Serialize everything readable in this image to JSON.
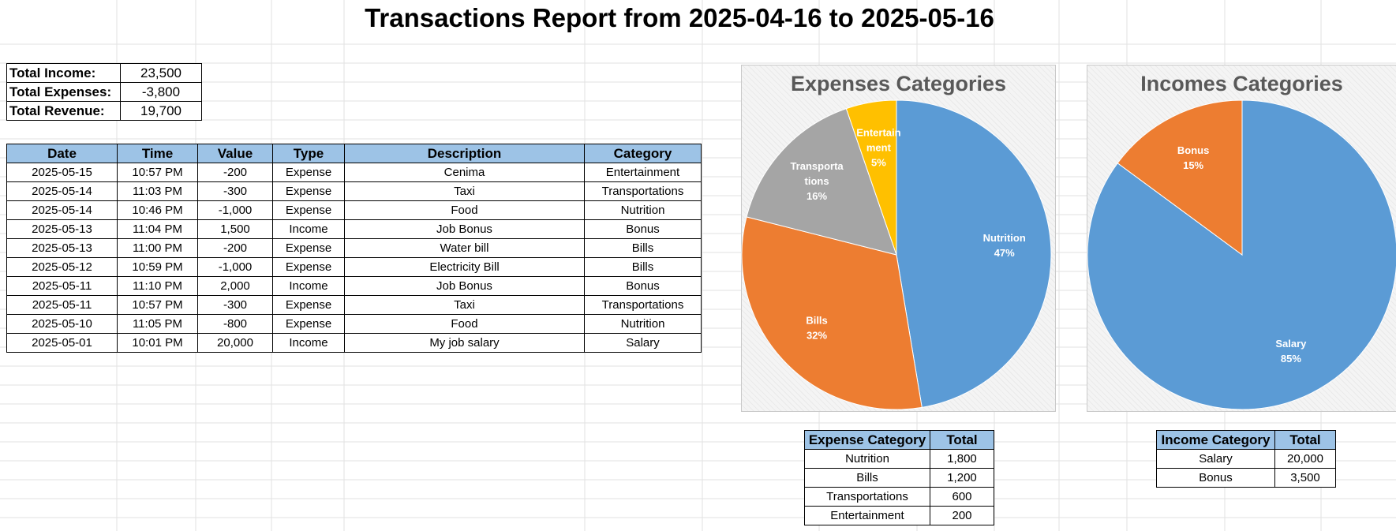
{
  "report": {
    "title": "Transactions Report from 2025-04-16 to 2025-05-16"
  },
  "summary": [
    {
      "label": "Total Income:",
      "value": "23,500"
    },
    {
      "label": "Total Expenses:",
      "value": "-3,800"
    },
    {
      "label": "Total Revenue:",
      "value": "19,700"
    }
  ],
  "transactions": {
    "headers": [
      "Date",
      "Time",
      "Value",
      "Type",
      "Description",
      "Category"
    ],
    "rows": [
      [
        "2025-05-15",
        "10:57 PM",
        "-200",
        "Expense",
        "Cenima",
        "Entertainment"
      ],
      [
        "2025-05-14",
        "11:03 PM",
        "-300",
        "Expense",
        "Taxi",
        "Transportations"
      ],
      [
        "2025-05-14",
        "10:46 PM",
        "-1,000",
        "Expense",
        "Food",
        "Nutrition"
      ],
      [
        "2025-05-13",
        "11:04 PM",
        "1,500",
        "Income",
        "Job Bonus",
        "Bonus"
      ],
      [
        "2025-05-13",
        "11:00 PM",
        "-200",
        "Expense",
        "Water bill",
        "Bills"
      ],
      [
        "2025-05-12",
        "10:59 PM",
        "-1,000",
        "Expense",
        "Electricity Bill",
        "Bills"
      ],
      [
        "2025-05-11",
        "11:10 PM",
        "2,000",
        "Income",
        "Job Bonus",
        "Bonus"
      ],
      [
        "2025-05-11",
        "10:57 PM",
        "-300",
        "Expense",
        "Taxi",
        "Transportations"
      ],
      [
        "2025-05-10",
        "11:05 PM",
        "-800",
        "Expense",
        "Food",
        "Nutrition"
      ],
      [
        "2025-05-01",
        "10:01 PM",
        "20,000",
        "Income",
        "My job salary",
        "Salary"
      ]
    ]
  },
  "expense_table": {
    "headers": [
      "Expense Category",
      "Total"
    ],
    "rows": [
      [
        "Nutrition",
        "1,800"
      ],
      [
        "Bills",
        "1,200"
      ],
      [
        "Transportations",
        "600"
      ],
      [
        "Entertainment",
        "200"
      ]
    ]
  },
  "income_table": {
    "headers": [
      "Income Category",
      "Total"
    ],
    "rows": [
      [
        "Salary",
        "20,000"
      ],
      [
        "Bonus",
        "3,500"
      ]
    ]
  },
  "chart_data": [
    {
      "type": "pie",
      "title": "Expenses Categories",
      "slices": [
        {
          "label": "Nutrition",
          "display_label": [
            "Nutrition"
          ],
          "value": 1800,
          "percent_label": "47%",
          "color": "#5b9bd5"
        },
        {
          "label": "Bills",
          "display_label": [
            "Bills"
          ],
          "value": 1200,
          "percent_label": "32%",
          "color": "#ed7d31"
        },
        {
          "label": "Transportations",
          "display_label": [
            "Transporta",
            "tions"
          ],
          "value": 600,
          "percent_label": "16%",
          "color": "#a5a5a5"
        },
        {
          "label": "Entertainment",
          "display_label": [
            "Entertain",
            "ment"
          ],
          "value": 200,
          "percent_label": "5%",
          "color": "#ffc000"
        }
      ]
    },
    {
      "type": "pie",
      "title": "Incomes Categories",
      "slices": [
        {
          "label": "Salary",
          "display_label": [
            "Salary"
          ],
          "value": 20000,
          "percent_label": "85%",
          "color": "#5b9bd5"
        },
        {
          "label": "Bonus",
          "display_label": [
            "Bonus"
          ],
          "value": 3500,
          "percent_label": "15%",
          "color": "#ed7d31"
        }
      ]
    }
  ]
}
